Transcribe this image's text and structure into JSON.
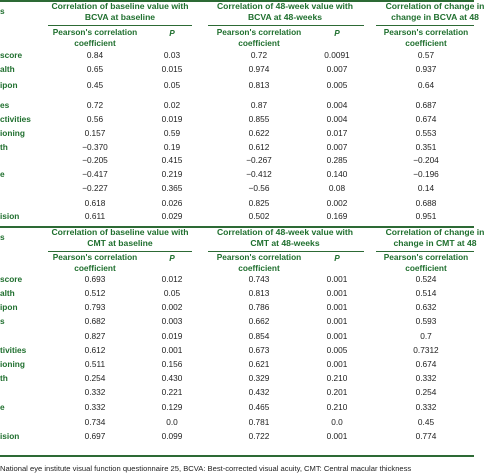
{
  "top_table": {
    "groups": [
      {
        "line1": "Correlation of baseline value with",
        "line2": "BCVA at baseline"
      },
      {
        "line1": "Correlation of 48-week value with",
        "line2": "BCVA at 48-weeks"
      },
      {
        "line1": "Correlation of change in",
        "line2": "change in BCVA at 48"
      }
    ],
    "left_cut_label": "s",
    "sub_headers": {
      "pearson_line1": "Pearson's correlation",
      "pearson_line2": "coefficient",
      "p": "P"
    },
    "rows": [
      {
        "label": "score",
        "v": [
          "0.84",
          "0.03",
          "0.72",
          "0.0091",
          "0.57"
        ]
      },
      {
        "label": "alth",
        "v": [
          "0.65",
          "0.015",
          "0.974",
          "0.007",
          "0.937"
        ]
      },
      {
        "label": "ipon",
        "v": [
          "0.45",
          "0.05",
          "0.813",
          "0.005",
          "0.64"
        ]
      },
      {
        "label": "es",
        "v": [
          "0.72",
          "0.02",
          "0.87",
          "0.004",
          "0.687"
        ]
      },
      {
        "label": "ctivities",
        "v": [
          "0.56",
          "0.019",
          "0.855",
          "0.004",
          "0.674"
        ]
      },
      {
        "label": "ioning",
        "v": [
          "0.157",
          "0.59",
          "0.622",
          "0.017",
          "0.553"
        ]
      },
      {
        "label": "th",
        "v": [
          "−0.370",
          "0.19",
          "0.612",
          "0.007",
          "0.351"
        ]
      },
      {
        "label": "",
        "v": [
          "−0.205",
          "0.415",
          "−0.267",
          "0.285",
          "−0.204"
        ]
      },
      {
        "label": "e",
        "v": [
          "−0.417",
          "0.219",
          "−0.412",
          "0.140",
          "−0.196"
        ]
      },
      {
        "label": "",
        "v": [
          "−0.227",
          "0.365",
          "−0.56",
          "0.08",
          "0.14"
        ]
      },
      {
        "label": "",
        "v": [
          "0.618",
          "0.026",
          "0.825",
          "0.002",
          "0.688"
        ]
      },
      {
        "label": "ision",
        "v": [
          "0.611",
          "0.029",
          "0.502",
          "0.169",
          "0.951"
        ]
      }
    ]
  },
  "bottom_table": {
    "groups": [
      {
        "line1": "Correlation of baseline value with",
        "line2": "CMT at baseline"
      },
      {
        "line1": "Correlation of 48-week value with",
        "line2": "CMT at 48-weeks"
      },
      {
        "line1": "Correlation of change in",
        "line2": "change in CMT at 48"
      }
    ],
    "left_cut_label": "s",
    "sub_headers": {
      "pearson_line1": "Pearson's correlation",
      "pearson_line2": "coefficient",
      "p": "P"
    },
    "rows": [
      {
        "label": "score",
        "v": [
          "0.693",
          "0.012",
          "0.743",
          "0.001",
          "0.524"
        ]
      },
      {
        "label": "alth",
        "v": [
          "0.512",
          "0.05",
          "0.813",
          "0.001",
          "0.514"
        ]
      },
      {
        "label": "ipon",
        "v": [
          "0.793",
          "0.002",
          "0.786",
          "0.001",
          "0.632"
        ]
      },
      {
        "label": "s",
        "v": [
          "0.682",
          "0.003",
          "0.662",
          "0.001",
          "0.593"
        ]
      },
      {
        "label": "",
        "v": [
          "0.827",
          "0.019",
          "0.854",
          "0.001",
          "0.7"
        ]
      },
      {
        "label": "tivities",
        "v": [
          "0.612",
          "0.001",
          "0.673",
          "0.005",
          "0.7312"
        ]
      },
      {
        "label": "ioning",
        "v": [
          "0.511",
          "0.156",
          "0.621",
          "0.001",
          "0.674"
        ]
      },
      {
        "label": "th",
        "v": [
          "0.254",
          "0.430",
          "0.329",
          "0.210",
          "0.332"
        ]
      },
      {
        "label": "",
        "v": [
          "0.332",
          "0.221",
          "0.432",
          "0.201",
          "0.254"
        ]
      },
      {
        "label": "e",
        "v": [
          "0.332",
          "0.129",
          "0.465",
          "0.210",
          "0.332"
        ]
      },
      {
        "label": "",
        "v": [
          "0.734",
          "0.0",
          "0.781",
          "0.0",
          "0.45"
        ]
      },
      {
        "label": "ision",
        "v": [
          "0.697",
          "0.099",
          "0.722",
          "0.001",
          "0.774"
        ]
      }
    ]
  },
  "footnote": "National eye institute visual function questionnaire 25, BCVA: Best-corrected visual acuity, CMT: Central macular thickness"
}
